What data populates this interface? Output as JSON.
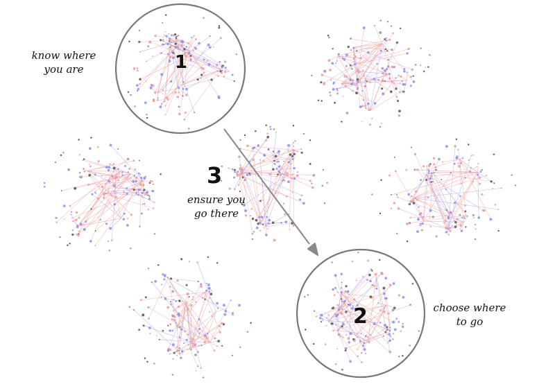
{
  "colors": {
    "edge_red": "#f2a6a6",
    "edge_blue": "#a9a9ee",
    "node_blue": "#8c8cee",
    "node_red": "#ee9a9a",
    "node_dark": "#555555",
    "circle": "#777777",
    "arrow": "#888888",
    "text": "#111111"
  },
  "steps": {
    "one": {
      "number": "1",
      "line1": "know where",
      "line2": "you are"
    },
    "two": {
      "number": "2",
      "line1": "choose where",
      "line2": "to go"
    },
    "three": {
      "number": "3",
      "line1": "ensure you",
      "line2": "go there"
    }
  },
  "icons": {
    "arrow": "arrow-right-down-icon"
  }
}
